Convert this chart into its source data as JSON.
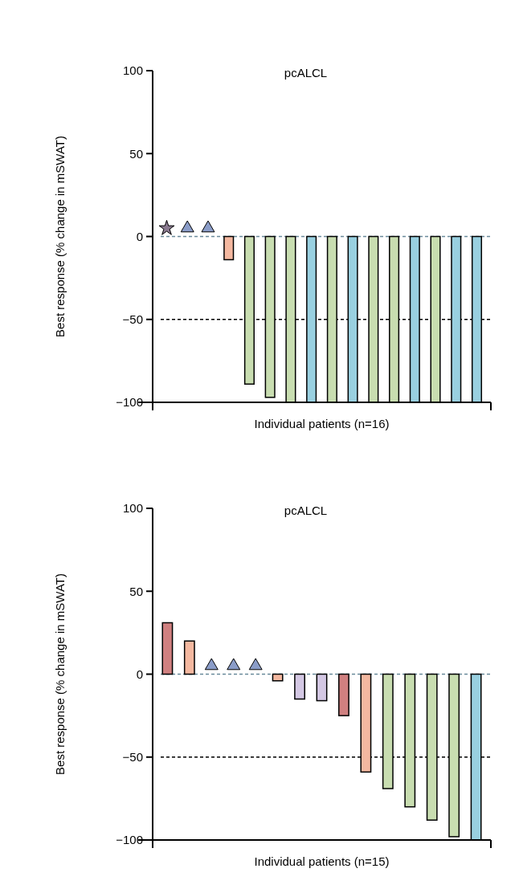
{
  "chart_data": [
    {
      "type": "bar",
      "title": "pcALCL",
      "xlabel": "Individual patients (n=16)",
      "ylabel": "Best response (% change in mSWAT)",
      "categories": [
        null,
        null,
        null,
        null,
        null,
        null,
        null,
        null,
        null,
        null,
        null,
        null,
        null,
        null,
        null,
        null
      ],
      "ylim": [
        -100,
        100
      ],
      "yticks": [
        -100,
        -50,
        0,
        50,
        100
      ],
      "grid": false,
      "series": [
        {
          "values": [
            null,
            null,
            null,
            -14,
            -89,
            -97,
            -100,
            -100,
            -100,
            -100,
            -100,
            -100,
            -100,
            -100,
            -100,
            -100
          ],
          "colors": [
            null,
            null,
            null,
            "#f4b8a0",
            "#c8ddb0",
            "#c8ddb0",
            "#c8ddb0",
            "#99d0e0",
            "#c8ddb0",
            "#99d0e0",
            "#c8ddb0",
            "#c8ddb0",
            "#99d0e0",
            "#c8ddb0",
            "#99d0e0",
            "#99d0e0"
          ]
        },
        {
          "type": "scatter",
          "marker": "star",
          "color": "#8a7a90",
          "values": [
            5,
            null,
            null,
            null,
            null,
            null,
            null,
            null,
            null,
            null,
            null,
            null,
            null,
            null,
            null,
            null
          ]
        },
        {
          "type": "scatter",
          "marker": "triangle",
          "color": "#8a9cc8",
          "values": [
            null,
            5,
            5,
            null,
            null,
            null,
            null,
            null,
            null,
            null,
            null,
            null,
            null,
            null,
            null,
            null
          ]
        }
      ],
      "ref_lines": [
        {
          "axis": "y",
          "value": 0,
          "color": "#6a8a9a",
          "line_style": "dashed"
        },
        {
          "axis": "y",
          "value": -50,
          "color": "#000000",
          "line_style": "dashed"
        }
      ]
    },
    {
      "type": "bar",
      "title": "pcALCL",
      "xlabel": "Individual patients (n=15)",
      "ylabel": "Best response (% change in mSWAT)",
      "categories": [
        null,
        null,
        null,
        null,
        null,
        null,
        null,
        null,
        null,
        null,
        null,
        null,
        null,
        null,
        null
      ],
      "ylim": [
        -100,
        100
      ],
      "yticks": [
        -100,
        -50,
        0,
        50,
        100
      ],
      "grid": false,
      "series": [
        {
          "values": [
            31,
            20,
            null,
            null,
            null,
            -4,
            -15,
            -16,
            -25,
            -59,
            -69,
            -80,
            -88,
            -98,
            -100
          ],
          "colors": [
            "#d08080",
            "#f4b8a0",
            null,
            null,
            null,
            "#f4b8a0",
            "#d4c8e4",
            "#d4c8e4",
            "#d08080",
            "#f4b8a0",
            "#c8ddb0",
            "#c8ddb0",
            "#c8ddb0",
            "#c8ddb0",
            "#99d0e0"
          ]
        },
        {
          "type": "scatter",
          "marker": "triangle",
          "color": "#8a9cc8",
          "values": [
            null,
            null,
            5,
            5,
            5,
            null,
            null,
            null,
            null,
            null,
            null,
            null,
            null,
            null,
            null
          ]
        }
      ],
      "ref_lines": [
        {
          "axis": "y",
          "value": 0,
          "color": "#6a8a9a",
          "line_style": "dashed"
        },
        {
          "axis": "y",
          "value": -50,
          "color": "#000000",
          "line_style": "dashed"
        }
      ]
    }
  ]
}
